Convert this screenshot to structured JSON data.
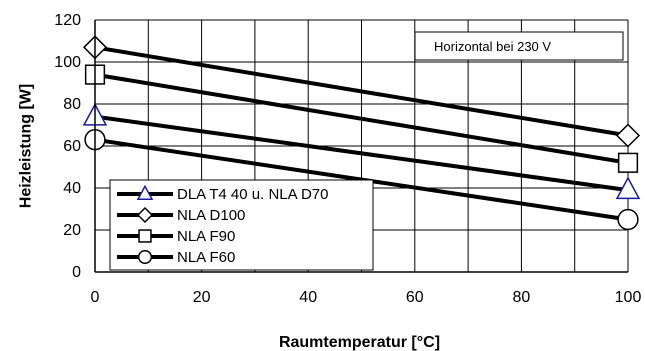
{
  "chart_data": {
    "type": "line",
    "title": "",
    "xlabel": "Raumtemperatur [°C]",
    "ylabel": "Heizleistung [W]",
    "xlim": [
      0,
      100
    ],
    "ylim": [
      0,
      120
    ],
    "xticks": [
      0,
      20,
      40,
      60,
      80,
      100
    ],
    "yticks": [
      0,
      20,
      40,
      60,
      80,
      100,
      120
    ],
    "grid": true,
    "legend_position": "bottom-left",
    "annotation": "Horizontal bei 230 V",
    "series": [
      {
        "name": "DLA T4 40 u. NLA D70",
        "marker": "triangle",
        "marker_color": "#1a1aa0",
        "x": [
          0,
          100
        ],
        "y": [
          74,
          39
        ]
      },
      {
        "name": "NLA D100",
        "marker": "diamond",
        "marker_color": "#000000",
        "x": [
          0,
          100
        ],
        "y": [
          107,
          65
        ]
      },
      {
        "name": "NLA F90",
        "marker": "square",
        "marker_color": "#000000",
        "x": [
          0,
          100
        ],
        "y": [
          94,
          52
        ]
      },
      {
        "name": "NLA F60",
        "marker": "circle",
        "marker_color": "#000000",
        "x": [
          0,
          100
        ],
        "y": [
          63,
          25
        ]
      }
    ]
  }
}
